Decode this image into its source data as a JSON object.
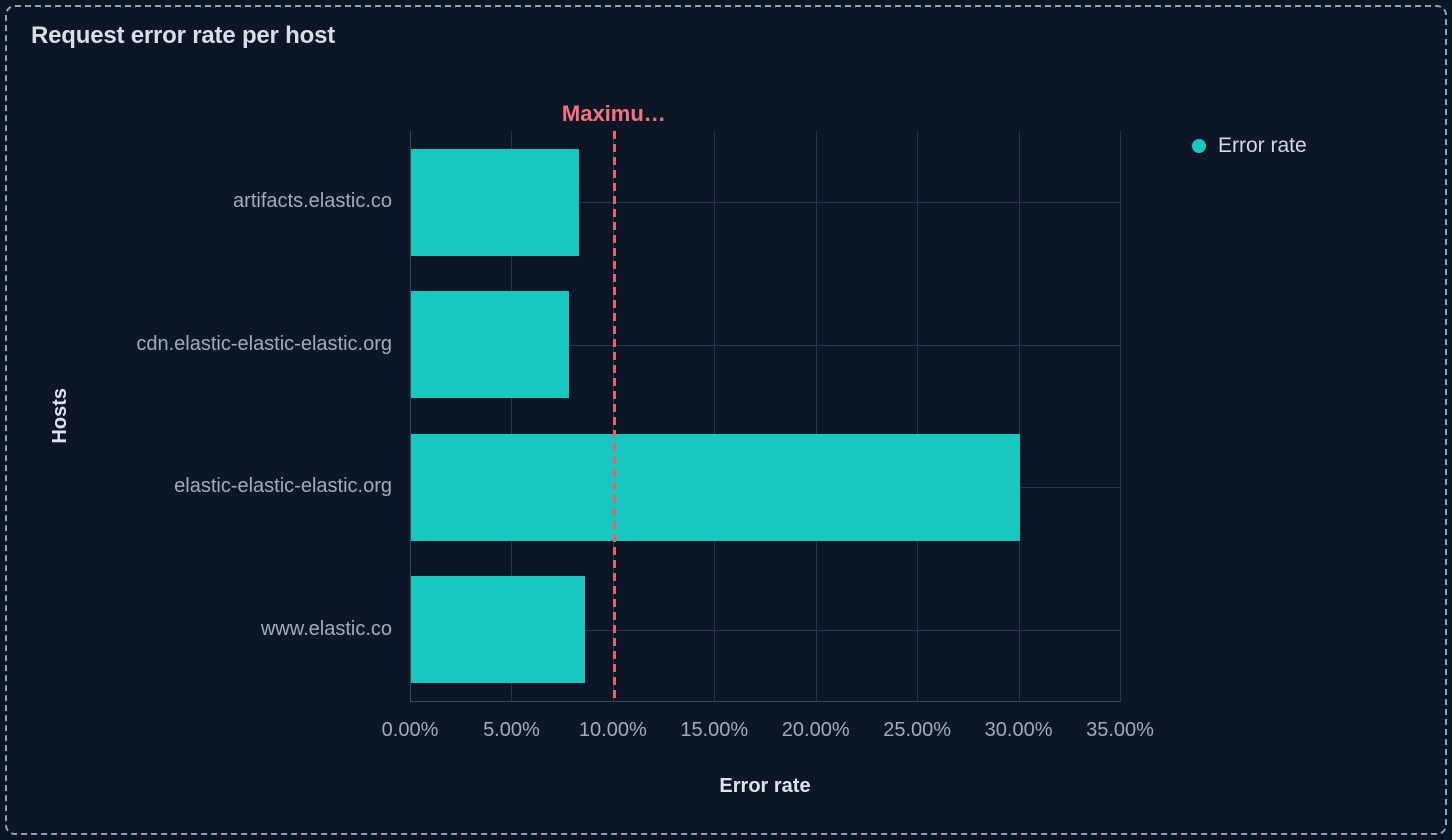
{
  "panel": {
    "title": "Request error rate per host"
  },
  "legend": {
    "position": "right",
    "items": [
      {
        "label": "Error rate",
        "color": "#18c7c0"
      }
    ]
  },
  "chart_data": {
    "type": "bar",
    "orientation": "horizontal",
    "title": "Request error rate per host",
    "categories": [
      "artifacts.elastic.co",
      "cdn.elastic-elastic-elastic.org",
      "elastic-elastic-elastic.org",
      "www.elastic.co"
    ],
    "series": [
      {
        "name": "Error rate",
        "values": [
          8.3,
          7.8,
          30.0,
          8.6
        ],
        "unit": "%",
        "color": "#18c7c0"
      }
    ],
    "xlabel": "Error rate",
    "ylabel": "Hosts",
    "xlim": [
      0,
      35
    ],
    "x_ticks": [
      "0.00%",
      "5.00%",
      "10.00%",
      "15.00%",
      "20.00%",
      "25.00%",
      "30.00%",
      "35.00%"
    ],
    "grid": true,
    "legend_position": "right",
    "reference_line": {
      "label": "Maximu…",
      "value": 10,
      "style": "dashed",
      "line_color": "#e4646d",
      "label_color": "#f3747b"
    }
  },
  "colors": {
    "background": "#0d1626",
    "panel_border": "#8e9fba",
    "bar": "#18c7c0",
    "gridline": "#29364d",
    "axis_line": "#3b4860",
    "title_text": "#d8dfe9",
    "axis_label_text": "#a0abbe",
    "axis_title_text": "#dce3ed",
    "reference_line": "#e4646d",
    "reference_label": "#f3747b"
  }
}
